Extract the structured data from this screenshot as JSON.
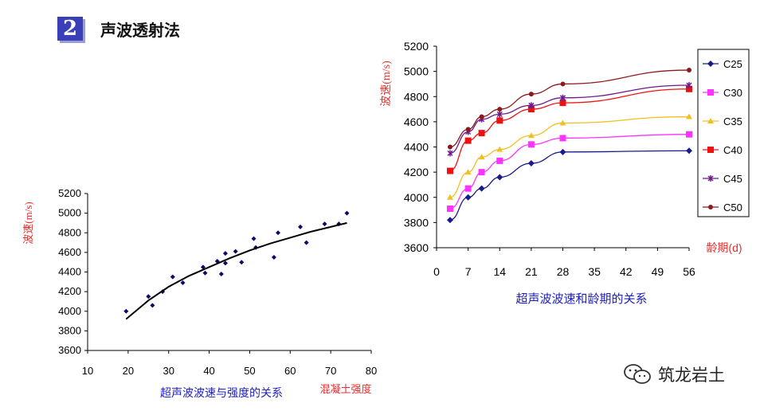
{
  "header": {
    "number": "2",
    "title": "声波透射法"
  },
  "watermark": {
    "text": "筑龙岩土",
    "icon": "wechat-icon"
  },
  "colors": {
    "red_label": "#e03030",
    "blue_label": "#2020c0",
    "scatter_point": "#0a0a6a"
  },
  "chart_data": [
    {
      "id": "left",
      "type": "scatter",
      "xlabel": "超声波波速与强度的关系",
      "xunit_label": "混凝土强度",
      "ylabel": "波速(m/s)",
      "xlim": [
        10,
        80
      ],
      "ylim": [
        3600,
        5200
      ],
      "xticks": [
        10,
        20,
        30,
        40,
        50,
        60,
        70,
        80
      ],
      "yticks": [
        3600,
        3800,
        4000,
        4200,
        4400,
        4600,
        4800,
        5000,
        5200
      ],
      "points": [
        [
          19.5,
          4000
        ],
        [
          25,
          4150
        ],
        [
          26,
          4060
        ],
        [
          28.5,
          4200
        ],
        [
          31,
          4350
        ],
        [
          33.5,
          4290
        ],
        [
          38.5,
          4450
        ],
        [
          39,
          4390
        ],
        [
          42,
          4510
        ],
        [
          43,
          4380
        ],
        [
          44,
          4590
        ],
        [
          44,
          4490
        ],
        [
          46.5,
          4610
        ],
        [
          48,
          4500
        ],
        [
          51,
          4740
        ],
        [
          51.5,
          4650
        ],
        [
          56,
          4550
        ],
        [
          57,
          4800
        ],
        [
          62.5,
          4860
        ],
        [
          64,
          4700
        ],
        [
          68.5,
          4890
        ],
        [
          72,
          4890
        ],
        [
          74,
          5000
        ]
      ],
      "trend": [
        [
          19.5,
          3920
        ],
        [
          25,
          4110
        ],
        [
          30,
          4250
        ],
        [
          35,
          4360
        ],
        [
          40,
          4450
        ],
        [
          45,
          4540
        ],
        [
          50,
          4620
        ],
        [
          55,
          4690
        ],
        [
          60,
          4750
        ],
        [
          65,
          4810
        ],
        [
          70,
          4860
        ],
        [
          74,
          4900
        ]
      ],
      "grid": false
    },
    {
      "id": "right",
      "type": "line",
      "xlabel": "超声波波速和龄期的关系",
      "xunit_label": "龄期(d)",
      "ylabel": "波速(m/s)",
      "xlim": [
        0,
        56
      ],
      "ylim": [
        3600,
        5200
      ],
      "xticks": [
        0,
        7,
        14,
        21,
        28,
        35,
        42,
        49,
        56
      ],
      "yticks": [
        3600,
        3800,
        4000,
        4200,
        4400,
        4600,
        4800,
        5000,
        5200
      ],
      "x": [
        3,
        7,
        10,
        14,
        21,
        28,
        56
      ],
      "series": [
        {
          "name": "C25",
          "color": "#1a1a8c",
          "marker": "diamond",
          "values": [
            3820,
            4000,
            4070,
            4160,
            4270,
            4360,
            4370
          ]
        },
        {
          "name": "C30",
          "color": "#ff33ff",
          "marker": "square",
          "values": [
            3910,
            4070,
            4200,
            4290,
            4420,
            4470,
            4500
          ]
        },
        {
          "name": "C35",
          "color": "#f0c020",
          "marker": "triangle",
          "values": [
            4000,
            4200,
            4320,
            4380,
            4490,
            4590,
            4640
          ]
        },
        {
          "name": "C40",
          "color": "#ee1111",
          "marker": "square",
          "values": [
            4210,
            4450,
            4510,
            4610,
            4700,
            4750,
            4860
          ]
        },
        {
          "name": "C45",
          "color": "#6a1a8a",
          "marker": "star",
          "values": [
            4350,
            4520,
            4620,
            4660,
            4730,
            4790,
            4890
          ]
        },
        {
          "name": "C50",
          "color": "#8a1a1a",
          "marker": "circle",
          "values": [
            4400,
            4540,
            4640,
            4700,
            4820,
            4900,
            5010
          ]
        }
      ],
      "legend": "right",
      "grid": false
    }
  ]
}
